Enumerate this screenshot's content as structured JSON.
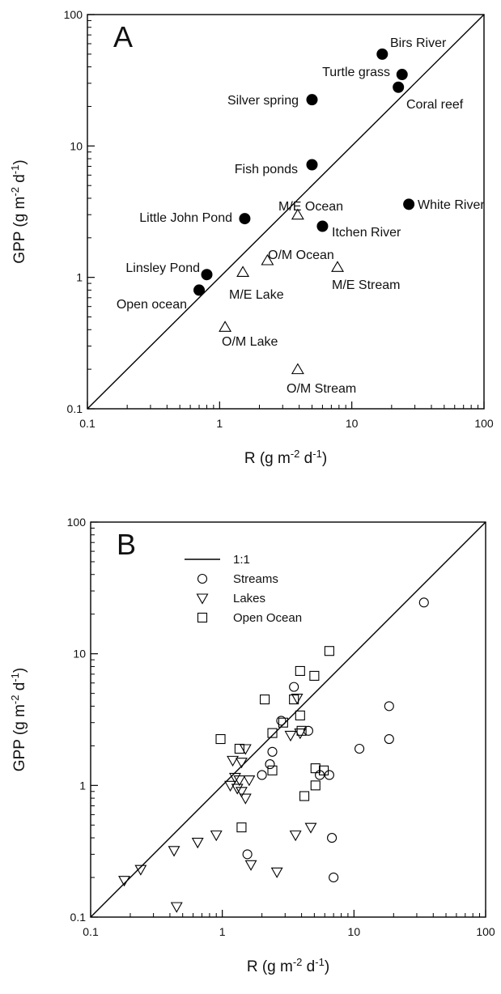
{
  "chart_data": [
    {
      "type": "scatter",
      "panel_label": "A",
      "xlabel": "R (g m-2 d-1)",
      "ylabel": "GPP (g m-2 d-1)",
      "xlabel_parts": [
        "R (g m",
        "-2",
        " d",
        "-1",
        ")"
      ],
      "ylabel_parts": [
        "GPP (g m",
        "-2",
        " d",
        "-1",
        ")"
      ],
      "xscale": "log",
      "yscale": "log",
      "xlim": [
        0.1,
        100
      ],
      "ylim": [
        0.1,
        100
      ],
      "xticks": [
        0.1,
        1,
        10,
        100
      ],
      "yticks": [
        0.1,
        1,
        10,
        100
      ],
      "xtick_labels": [
        "0.1",
        "1",
        "10",
        "100"
      ],
      "ytick_labels": [
        "0.1",
        "1",
        "10",
        "100"
      ],
      "reference_line": "1:1",
      "series": [
        {
          "marker": "filled-circle",
          "points": [
            {
              "label": "Birs River",
              "x": 17,
              "y": 50
            },
            {
              "label": "Turtle grass",
              "x": 24,
              "y": 35
            },
            {
              "label": "Coral reef",
              "x": 22.5,
              "y": 28
            },
            {
              "label": "Silver spring",
              "x": 5,
              "y": 22.5
            },
            {
              "label": "Fish ponds",
              "x": 5,
              "y": 7.2
            },
            {
              "label": "White River",
              "x": 27,
              "y": 3.6
            },
            {
              "label": "Little John Pond",
              "x": 1.55,
              "y": 2.8
            },
            {
              "label": "Itchen River",
              "x": 6,
              "y": 2.45
            },
            {
              "label": "Linsley Pond",
              "x": 0.8,
              "y": 1.05
            },
            {
              "label": "Open ocean",
              "x": 0.7,
              "y": 0.8
            }
          ]
        },
        {
          "marker": "open-triangle",
          "points": [
            {
              "label": "M/E Ocean",
              "x": 3.9,
              "y": 3.0
            },
            {
              "label": "O/M Ocean",
              "x": 2.3,
              "y": 1.35
            },
            {
              "label": "M/E Stream",
              "x": 7.8,
              "y": 1.2
            },
            {
              "label": "M/E Lake",
              "x": 1.5,
              "y": 1.1
            },
            {
              "label": "O/M Lake",
              "x": 1.1,
              "y": 0.42
            },
            {
              "label": "O/M Stream",
              "x": 3.9,
              "y": 0.2
            }
          ]
        }
      ]
    },
    {
      "type": "scatter",
      "panel_label": "B",
      "xlabel": "R (g m-2 d-1)",
      "ylabel": "GPP (g m-2 d-1)",
      "xlabel_parts": [
        "R (g m",
        "-2",
        " d",
        "-1",
        ")"
      ],
      "ylabel_parts": [
        "GPP (g m",
        "-2",
        " d",
        "-1",
        ")"
      ],
      "xscale": "log",
      "yscale": "log",
      "xlim": [
        0.1,
        100
      ],
      "ylim": [
        0.1,
        100
      ],
      "xticks": [
        0.1,
        1,
        10,
        100
      ],
      "yticks": [
        0.1,
        1,
        10,
        100
      ],
      "xtick_labels": [
        "0.1",
        "1",
        "10",
        "100"
      ],
      "ytick_labels": [
        "0.1",
        "1",
        "10",
        "100"
      ],
      "legend_placement": "top-left",
      "legend": [
        {
          "label": "1:1",
          "marker": "line"
        },
        {
          "label": "Streams",
          "marker": "open-circle"
        },
        {
          "label": "Lakes",
          "marker": "open-triangle-down"
        },
        {
          "label": "Open Ocean",
          "marker": "open-square"
        }
      ],
      "series": [
        {
          "name": "Streams",
          "marker": "open-circle",
          "points": [
            [
              34,
              24.5
            ],
            [
              18.5,
              4.0
            ],
            [
              18.5,
              2.25
            ],
            [
              11,
              1.9
            ],
            [
              3.5,
              5.6
            ],
            [
              2.8,
              3.1
            ],
            [
              4.5,
              2.6
            ],
            [
              2.4,
              1.8
            ],
            [
              2.3,
              1.45
            ],
            [
              2.0,
              1.2
            ],
            [
              5.5,
              1.2
            ],
            [
              6.5,
              1.2
            ],
            [
              1.55,
              0.3
            ],
            [
              6.8,
              0.4
            ],
            [
              7.0,
              0.2
            ]
          ]
        },
        {
          "name": "Lakes",
          "marker": "open-triangle-down",
          "points": [
            [
              3.7,
              4.6
            ],
            [
              3.9,
              2.5
            ],
            [
              3.3,
              2.4
            ],
            [
              1.5,
              1.9
            ],
            [
              1.2,
              1.55
            ],
            [
              1.4,
              1.5
            ],
            [
              1.25,
              1.15
            ],
            [
              1.35,
              1.1
            ],
            [
              1.6,
              1.1
            ],
            [
              1.15,
              1.0
            ],
            [
              1.3,
              0.95
            ],
            [
              1.4,
              0.9
            ],
            [
              1.5,
              0.8
            ],
            [
              0.9,
              0.42
            ],
            [
              0.65,
              0.37
            ],
            [
              0.43,
              0.32
            ],
            [
              0.18,
              0.19
            ],
            [
              0.24,
              0.23
            ],
            [
              0.45,
              0.12
            ],
            [
              1.65,
              0.25
            ],
            [
              2.6,
              0.22
            ],
            [
              3.6,
              0.42
            ],
            [
              4.7,
              0.48
            ]
          ]
        },
        {
          "name": "Open Ocean",
          "marker": "open-square",
          "points": [
            [
              6.5,
              10.5
            ],
            [
              3.9,
              7.4
            ],
            [
              5.0,
              6.8
            ],
            [
              2.1,
              4.5
            ],
            [
              3.5,
              4.5
            ],
            [
              3.9,
              3.4
            ],
            [
              2.9,
              3.0
            ],
            [
              4.0,
              2.6
            ],
            [
              2.4,
              2.5
            ],
            [
              0.97,
              2.25
            ],
            [
              1.35,
              1.9
            ],
            [
              2.4,
              1.3
            ],
            [
              5.1,
              1.35
            ],
            [
              5.9,
              1.3
            ],
            [
              5.1,
              1.0
            ],
            [
              4.2,
              0.83
            ],
            [
              1.4,
              0.48
            ]
          ]
        }
      ]
    }
  ]
}
